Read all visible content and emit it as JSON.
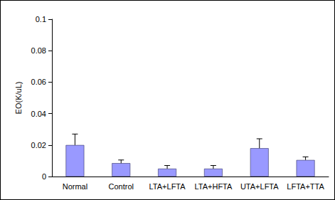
{
  "chart_data": {
    "type": "bar",
    "y_label": "EO(K/uL)",
    "categories": [
      "Normal",
      "Control",
      "LTA+LFTA",
      "LTA+HFTA",
      "UTA+LFTA",
      "LFTA+TTA"
    ],
    "values": [
      0.02,
      0.0085,
      0.005,
      0.005,
      0.018,
      0.0105
    ],
    "errors": [
      0.007,
      0.002,
      0.002,
      0.002,
      0.006,
      0.002
    ],
    "color": "#9999ff",
    "ylim": [
      0,
      0.1
    ],
    "yticks": [
      0,
      0.02,
      0.04,
      0.06,
      0.08,
      0.1
    ],
    "grid": false
  }
}
